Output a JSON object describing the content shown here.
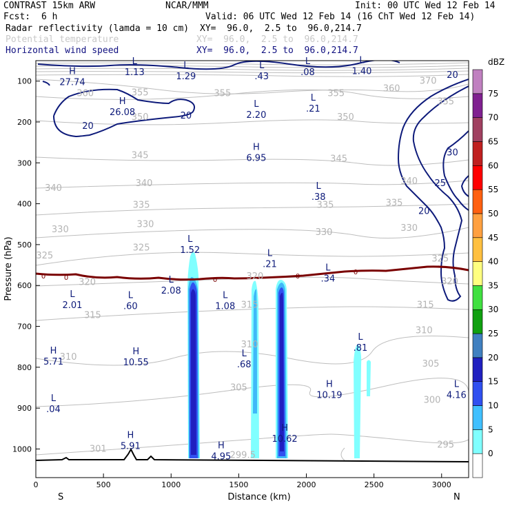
{
  "header": {
    "model": "CONTRAST 15km ARW",
    "center": "NCAR/MMM",
    "init": "Init: 00 UTC Wed 12 Feb 14",
    "fcst_label": "Fcst:",
    "fcst_value": "6 h",
    "valid": "Valid: 06 UTC Wed 12 Feb 14 (16 ChT Wed 12 Feb 14)",
    "fields": [
      {
        "name": "Radar reflectivity (lamda = 10 cm)",
        "xy": "XY=  96.0,  2.5 to  96.0,214.7"
      },
      {
        "name": "Potential temperature",
        "xy": "XY=  96.0,  2.5 to  96.0,214.7"
      },
      {
        "name": "Horizontal wind speed",
        "xy": "XY=  96.0,  2.5 to  96.0,214.7"
      }
    ]
  },
  "colors": {
    "theta": "#b4b4b4",
    "wind": "#0d1a7a",
    "freezing": "#7a0000",
    "terrain": "#000000"
  },
  "chart_data": {
    "type": "cross-section",
    "xlabel": "Distance (km)",
    "ylabel": "Pressure (hPa)",
    "xlim": [
      0,
      3200
    ],
    "ylim": [
      1070,
      50
    ],
    "x_ticks": [
      0,
      500,
      1000,
      1500,
      2000,
      2500,
      3000
    ],
    "y_ticks": [
      100,
      200,
      300,
      400,
      500,
      600,
      700,
      800,
      900,
      1000
    ],
    "x_endpoints": [
      "S",
      "N"
    ],
    "colorbar": {
      "title": "dBZ",
      "levels": [
        "0",
        "5",
        "10",
        "15",
        "20",
        "25",
        "30",
        "35",
        "40",
        "45",
        "50",
        "55",
        "60",
        "65",
        "70",
        "75"
      ],
      "colors": [
        "#ffffff",
        "#80ffff",
        "#40c0ff",
        "#3050f0",
        "#2020c0",
        "#4080c0",
        "#10a010",
        "#40e040",
        "#ffff80",
        "#ffc040",
        "#ffa040",
        "#ff6010",
        "#ff0000",
        "#c02020",
        "#a04060",
        "#802090",
        "#c080c0"
      ]
    },
    "theta_labels": [
      {
        "v": "360",
        "x": 365,
        "p": 130
      },
      {
        "v": "360",
        "x": 2630,
        "p": 118
      },
      {
        "v": "370",
        "x": 2900,
        "p": 100
      },
      {
        "v": "355",
        "x": 1380,
        "p": 130
      },
      {
        "v": "355",
        "x": 2220,
        "p": 130
      },
      {
        "v": "355",
        "x": 770,
        "p": 128
      },
      {
        "v": "355",
        "x": 3030,
        "p": 150
      },
      {
        "v": "350",
        "x": 770,
        "p": 188
      },
      {
        "v": "350",
        "x": 2290,
        "p": 188
      },
      {
        "v": "345",
        "x": 770,
        "p": 282
      },
      {
        "v": "345",
        "x": 2240,
        "p": 290
      },
      {
        "v": "340",
        "x": 130,
        "p": 362
      },
      {
        "v": "340",
        "x": 800,
        "p": 350
      },
      {
        "v": "340",
        "x": 2760,
        "p": 345
      },
      {
        "v": "335",
        "x": 780,
        "p": 403
      },
      {
        "v": "335",
        "x": 2140,
        "p": 403
      },
      {
        "v": "335",
        "x": 2650,
        "p": 398
      },
      {
        "v": "330",
        "x": 180,
        "p": 463
      },
      {
        "v": "330",
        "x": 810,
        "p": 450
      },
      {
        "v": "330",
        "x": 2130,
        "p": 470
      },
      {
        "v": "330",
        "x": 2760,
        "p": 460
      },
      {
        "v": "325",
        "x": 65,
        "p": 527
      },
      {
        "v": "325",
        "x": 780,
        "p": 508
      },
      {
        "v": "325",
        "x": 2990,
        "p": 535
      },
      {
        "v": "320",
        "x": 380,
        "p": 592
      },
      {
        "v": "320",
        "x": 1620,
        "p": 578
      },
      {
        "v": "320",
        "x": 3060,
        "p": 590
      },
      {
        "v": "315",
        "x": 420,
        "p": 673
      },
      {
        "v": "315",
        "x": 1580,
        "p": 648
      },
      {
        "v": "315",
        "x": 2880,
        "p": 648
      },
      {
        "v": "310",
        "x": 240,
        "p": 775
      },
      {
        "v": "310",
        "x": 1580,
        "p": 745
      },
      {
        "v": "310",
        "x": 2870,
        "p": 710
      },
      {
        "v": "305",
        "x": 1500,
        "p": 850
      },
      {
        "v": "305",
        "x": 2920,
        "p": 792
      },
      {
        "v": "300",
        "x": 2930,
        "p": 880
      },
      {
        "v": "301",
        "x": 460,
        "p": 1000
      },
      {
        "v": "295",
        "x": 3030,
        "p": 990
      },
      {
        "v": "299.5",
        "x": 1530,
        "p": 1015
      }
    ],
    "wind_labels": [
      {
        "v": "20",
        "x": 385,
        "p": 210
      },
      {
        "v": "20",
        "x": 1110,
        "p": 185
      },
      {
        "v": "20",
        "x": 3080,
        "p": 85
      },
      {
        "v": "30",
        "x": 3080,
        "p": 275
      },
      {
        "v": "25",
        "x": 2990,
        "p": 350
      },
      {
        "v": "20",
        "x": 2870,
        "p": 418
      }
    ],
    "extrema": [
      {
        "t": "H",
        "v": "27.74",
        "x": 270,
        "p": 95
      },
      {
        "t": "H",
        "v": "26.08",
        "x": 640,
        "p": 168
      },
      {
        "t": "L",
        "v": "1.13",
        "x": 730,
        "p": 70
      },
      {
        "t": "L",
        "v": "1.29",
        "x": 1110,
        "p": 80
      },
      {
        "t": "L",
        "v": ".43",
        "x": 1670,
        "p": 80
      },
      {
        "t": "L",
        "v": ".08",
        "x": 2010,
        "p": 70
      },
      {
        "t": "L",
        "v": "1.40",
        "x": 2410,
        "p": 68
      },
      {
        "t": "L",
        "v": "2.20",
        "x": 1630,
        "p": 175
      },
      {
        "t": "L",
        "v": ".21",
        "x": 2050,
        "p": 160
      },
      {
        "t": "H",
        "v": "6.95",
        "x": 1630,
        "p": 280
      },
      {
        "t": "L",
        "v": ".38",
        "x": 2090,
        "p": 375
      },
      {
        "t": "L",
        "v": "1.52",
        "x": 1140,
        "p": 505
      },
      {
        "t": "L",
        "v": ".21",
        "x": 1730,
        "p": 540
      },
      {
        "t": "L",
        "v": ".34",
        "x": 2160,
        "p": 575
      },
      {
        "t": "L",
        "v": "2.08",
        "x": 1000,
        "p": 605
      },
      {
        "t": "L",
        "v": ".60",
        "x": 700,
        "p": 643
      },
      {
        "t": "L",
        "v": "2.01",
        "x": 270,
        "p": 640
      },
      {
        "t": "L",
        "v": "1.08",
        "x": 1400,
        "p": 643
      },
      {
        "t": "H",
        "v": "5.71",
        "x": 130,
        "p": 778
      },
      {
        "t": "H",
        "v": "10.55",
        "x": 740,
        "p": 780
      },
      {
        "t": "L",
        "v": ".68",
        "x": 1540,
        "p": 785
      },
      {
        "t": "L",
        "v": ".81",
        "x": 2400,
        "p": 745
      },
      {
        "t": "H",
        "v": "10.19",
        "x": 2170,
        "p": 860
      },
      {
        "t": "L",
        "v": "4.16",
        "x": 3110,
        "p": 860
      },
      {
        "t": "L",
        "v": ".04",
        "x": 130,
        "p": 895
      },
      {
        "t": "H",
        "v": "5.91",
        "x": 700,
        "p": 985
      },
      {
        "t": "H",
        "v": "4.95",
        "x": 1370,
        "p": 1010
      },
      {
        "t": "H",
        "v": "10.62",
        "x": 1840,
        "p": 967
      }
    ],
    "freezing_level_label": "0"
  }
}
